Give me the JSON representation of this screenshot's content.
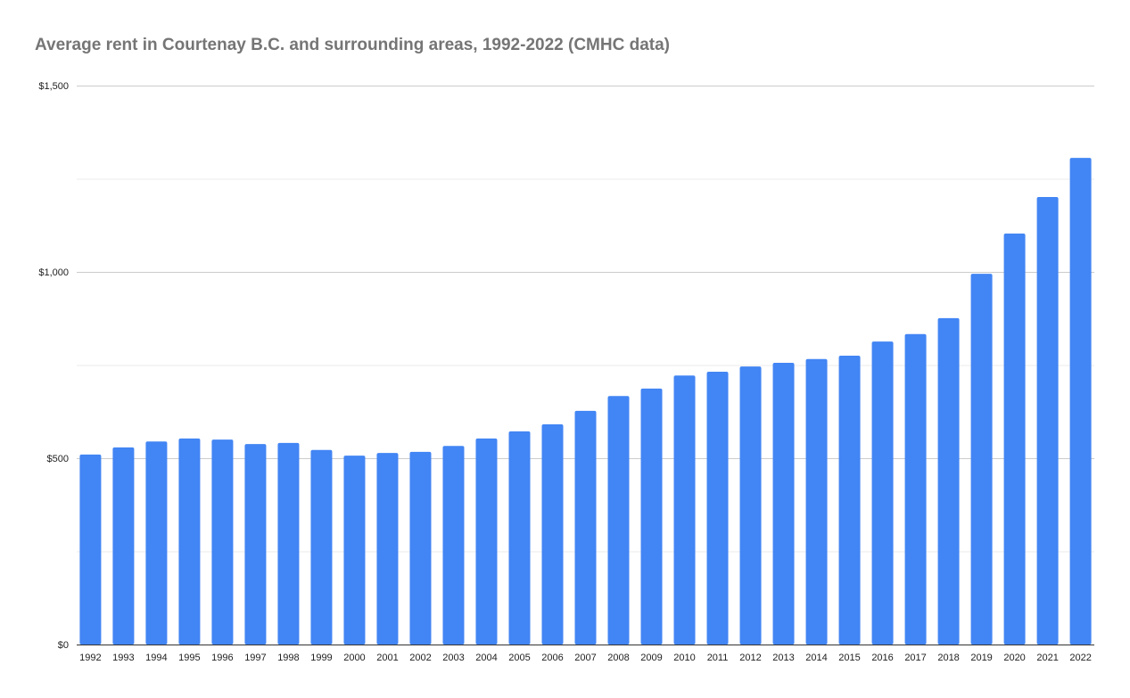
{
  "chart_data": {
    "type": "bar",
    "title": "Average rent in Courtenay B.C. and surrounding areas, 1992-2022 (CMHC data)",
    "xlabel": "",
    "ylabel": "",
    "ylim": [
      0,
      1500
    ],
    "yticks": [
      0,
      500,
      1000,
      1500
    ],
    "ytick_labels": [
      "$0",
      "$500",
      "$1,000",
      "$1,500"
    ],
    "minor_gridlines": [
      250,
      750,
      1250
    ],
    "grid": true,
    "bar_color": "#4285f4",
    "categories": [
      "1992",
      "1993",
      "1994",
      "1995",
      "1996",
      "1997",
      "1998",
      "1999",
      "2000",
      "2001",
      "2002",
      "2003",
      "2004",
      "2005",
      "2006",
      "2007",
      "2008",
      "2009",
      "2010",
      "2011",
      "2012",
      "2013",
      "2014",
      "2015",
      "2016",
      "2017",
      "2018",
      "2019",
      "2020",
      "2021",
      "2022"
    ],
    "values": [
      510,
      529,
      545,
      553,
      550,
      538,
      541,
      522,
      507,
      514,
      517,
      533,
      553,
      572,
      591,
      627,
      667,
      687,
      722,
      732,
      746,
      756,
      766,
      775,
      813,
      833,
      876,
      995,
      1103,
      1201,
      1306
    ]
  }
}
